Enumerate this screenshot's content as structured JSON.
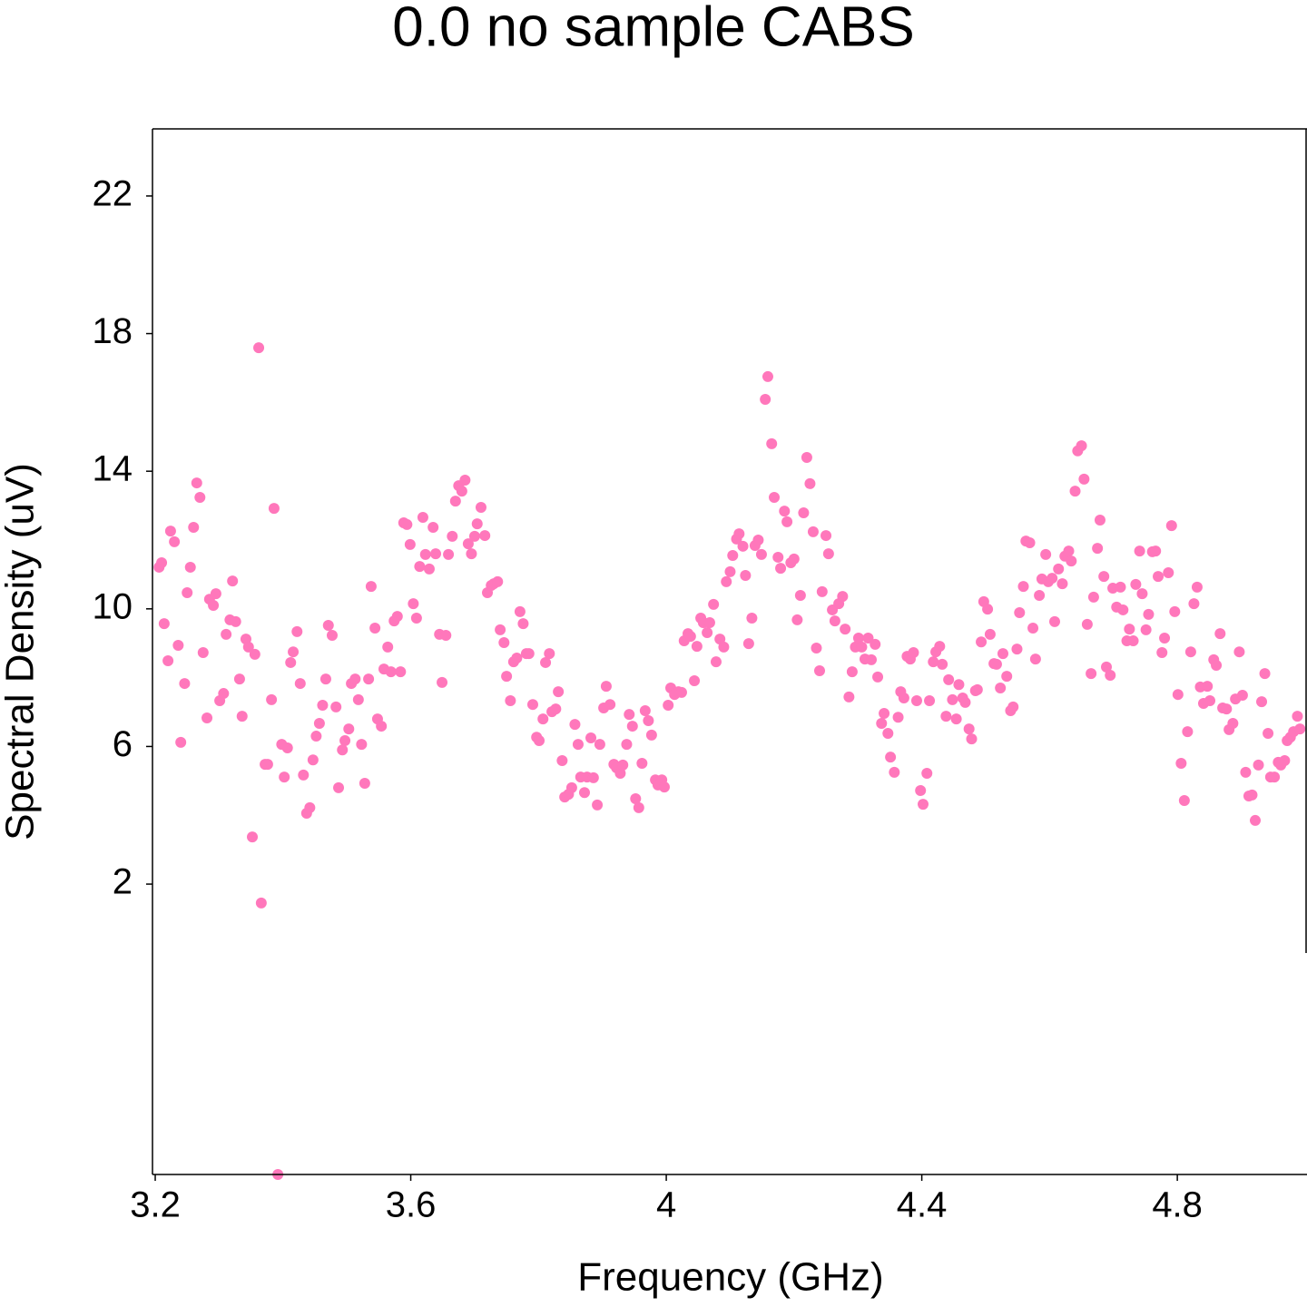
{
  "chart_data": {
    "type": "scatter",
    "title": "0.0 no sample CABS",
    "x_label": "Frequency (GHz)",
    "y_label": "Spectral Density (uV)",
    "color": "#ff77bb",
    "xlim": [
      3.1957,
      5.003
    ],
    "ylim": [
      -6.44,
      23.95
    ],
    "xticks": [
      3.2,
      3.6,
      4,
      4.4,
      4.8
    ],
    "yticks": [
      2,
      6,
      10,
      14,
      18,
      22
    ],
    "x": [
      3.206,
      3.21,
      3.214,
      3.22,
      3.224,
      3.23,
      3.236,
      3.24,
      3.246,
      3.25,
      3.255,
      3.26,
      3.265,
      3.27,
      3.275,
      3.281,
      3.285,
      3.291,
      3.295,
      3.301,
      3.307,
      3.311,
      3.317,
      3.321,
      3.326,
      3.332,
      3.336,
      3.342,
      3.346,
      3.352,
      3.356,
      3.362,
      3.366,
      3.372,
      3.376,
      3.382,
      3.386,
      3.392,
      3.398,
      3.402,
      3.407,
      3.412,
      3.416,
      3.422,
      3.427,
      3.432,
      3.437,
      3.442,
      3.447,
      3.452,
      3.457,
      3.462,
      3.467,
      3.471,
      3.477,
      3.483,
      3.487,
      3.493,
      3.497,
      3.503,
      3.507,
      3.513,
      3.518,
      3.523,
      3.528,
      3.534,
      3.538,
      3.544,
      3.548,
      3.554,
      3.558,
      3.564,
      3.569,
      3.574,
      3.579,
      3.584,
      3.589,
      3.594,
      3.599,
      3.604,
      3.609,
      3.614,
      3.619,
      3.623,
      3.629,
      3.635,
      3.639,
      3.645,
      3.649,
      3.655,
      3.659,
      3.665,
      3.67,
      3.675,
      3.68,
      3.685,
      3.69,
      3.695,
      3.7,
      3.704,
      3.71,
      3.716,
      3.72,
      3.726,
      3.73,
      3.736,
      3.74,
      3.746,
      3.75,
      3.756,
      3.761,
      3.766,
      3.771,
      3.776,
      3.781,
      3.785,
      3.791,
      3.797,
      3.801,
      3.807,
      3.811,
      3.817,
      3.821,
      3.827,
      3.831,
      3.837,
      3.841,
      3.847,
      3.852,
      3.857,
      3.862,
      3.866,
      3.872,
      3.876,
      3.882,
      3.886,
      3.892,
      3.896,
      3.902,
      3.906,
      3.912,
      3.918,
      3.922,
      3.928,
      3.932,
      3.938,
      3.942,
      3.947,
      3.952,
      3.957,
      3.962,
      3.967,
      3.972,
      3.977,
      3.983,
      3.987,
      3.993,
      3.997,
      4.003,
      4.007,
      4.013,
      4.019,
      4.024,
      4.028,
      4.034,
      4.038,
      4.044,
      4.048,
      4.054,
      4.058,
      4.064,
      4.068,
      4.074,
      4.078,
      4.084,
      4.09,
      4.094,
      4.1,
      4.104,
      4.11,
      4.114,
      4.12,
      4.124,
      4.129,
      4.134,
      4.139,
      4.144,
      4.149,
      4.155,
      4.159,
      4.165,
      4.169,
      4.175,
      4.179,
      4.185,
      4.189,
      4.195,
      4.2,
      4.205,
      4.21,
      4.215,
      4.22,
      4.225,
      4.23,
      4.235,
      4.24,
      4.244,
      4.25,
      4.254,
      4.26,
      4.264,
      4.27,
      4.276,
      4.28,
      4.286,
      4.291,
      4.296,
      4.301,
      4.306,
      4.311,
      4.316,
      4.321,
      4.327,
      4.331,
      4.337,
      4.341,
      4.347,
      4.351,
      4.357,
      4.363,
      4.367,
      4.372,
      4.377,
      4.382,
      4.387,
      4.392,
      4.398,
      4.402,
      4.408,
      4.412,
      4.418,
      4.422,
      4.428,
      4.432,
      4.438,
      4.442,
      4.448,
      4.454,
      4.458,
      4.464,
      4.468,
      4.474,
      4.478,
      4.484,
      4.487,
      4.493,
      4.497,
      4.503,
      4.507,
      4.513,
      4.517,
      4.523,
      4.527,
      4.533,
      4.539,
      4.543,
      4.549,
      4.553,
      4.559,
      4.563,
      4.569,
      4.574,
      4.578,
      4.584,
      4.588,
      4.594,
      4.598,
      4.604,
      4.608,
      4.614,
      4.62,
      4.624,
      4.63,
      4.634,
      4.64,
      4.644,
      4.65,
      4.654,
      4.659,
      4.665,
      4.669,
      4.675,
      4.679,
      4.685,
      4.689,
      4.695,
      4.699,
      4.705,
      4.711,
      4.715,
      4.721,
      4.725,
      4.731,
      4.735,
      4.741,
      4.745,
      4.751,
      4.755,
      4.761,
      4.766,
      4.77,
      4.776,
      4.78,
      4.786,
      4.791,
      4.796,
      4.801,
      4.806,
      4.811,
      4.816,
      4.821,
      4.826,
      4.831,
      4.836,
      4.841,
      4.847,
      4.851,
      4.857,
      4.861,
      4.867,
      4.871,
      4.877,
      4.881,
      4.887,
      4.891,
      4.897,
      4.902,
      4.907,
      4.912,
      4.917,
      4.922,
      4.927,
      4.932,
      4.937,
      4.942,
      4.946,
      4.952,
      4.958,
      4.962,
      4.968,
      4.972,
      4.977,
      4.982,
      4.988,
      4.992
    ],
    "values": [
      11.21,
      11.34,
      9.57,
      8.49,
      12.26,
      11.95,
      8.94,
      6.12,
      7.83,
      10.47,
      11.21,
      12.37,
      13.66,
      13.24,
      8.73,
      6.83,
      10.28,
      10.1,
      10.44,
      7.33,
      7.54,
      9.26,
      9.68,
      10.81,
      9.63,
      7.96,
      6.88,
      9.12,
      8.89,
      3.37,
      8.68,
      17.59,
      1.45,
      5.48,
      5.48,
      7.36,
      12.92,
      -6.44,
      6.06,
      5.11,
      5.96,
      8.44,
      8.75,
      9.34,
      7.83,
      5.17,
      4.06,
      4.22,
      5.61,
      6.3,
      6.67,
      7.2,
      7.96,
      9.52,
      9.23,
      7.15,
      4.8,
      5.9,
      6.17,
      6.51,
      7.83,
      7.96,
      7.36,
      6.06,
      4.93,
      7.96,
      10.65,
      9.44,
      6.8,
      6.59,
      8.25,
      8.89,
      8.17,
      9.65,
      9.78,
      8.17,
      12.5,
      12.45,
      11.87,
      10.15,
      9.73,
      11.23,
      12.66,
      11.58,
      11.16,
      12.37,
      11.6,
      9.26,
      7.86,
      9.23,
      11.58,
      12.11,
      13.13,
      13.58,
      13.42,
      13.74,
      11.89,
      11.6,
      12.11,
      12.47,
      12.95,
      12.13,
      10.47,
      10.68,
      10.73,
      10.79,
      9.39,
      9.02,
      8.04,
      7.33,
      8.46,
      8.57,
      9.92,
      9.57,
      8.7,
      8.7,
      7.22,
      6.27,
      6.17,
      6.8,
      8.44,
      8.7,
      7.01,
      7.09,
      7.59,
      5.59,
      4.53,
      4.61,
      4.8,
      6.64,
      6.06,
      5.11,
      4.66,
      5.11,
      6.25,
      5.09,
      4.3,
      6.06,
      7.12,
      7.75,
      7.22,
      5.48,
      5.38,
      5.22,
      5.46,
      6.06,
      6.93,
      6.59,
      4.48,
      4.22,
      5.51,
      7.04,
      6.75,
      6.33,
      5.03,
      4.88,
      5.03,
      4.82,
      7.2,
      7.7,
      7.51,
      7.59,
      7.57,
      9.07,
      9.28,
      9.2,
      7.91,
      8.91,
      9.73,
      9.6,
      9.31,
      9.6,
      10.13,
      8.46,
      9.12,
      8.89,
      10.79,
      11.08,
      11.55,
      12.03,
      12.18,
      11.82,
      10.97,
      8.99,
      9.73,
      11.84,
      12.0,
      11.58,
      16.09,
      16.75,
      14.8,
      13.24,
      11.5,
      11.18,
      12.84,
      12.53,
      11.34,
      11.45,
      9.68,
      10.39,
      12.79,
      14.4,
      13.64,
      12.24,
      8.86,
      8.2,
      10.5,
      12.13,
      11.6,
      9.97,
      9.65,
      10.15,
      10.36,
      9.41,
      7.44,
      8.17,
      8.89,
      9.15,
      8.89,
      8.54,
      9.15,
      8.52,
      8.97,
      8.02,
      6.67,
      6.96,
      6.38,
      5.69,
      5.25,
      6.85,
      7.59,
      7.41,
      8.62,
      8.54,
      8.73,
      7.33,
      4.72,
      4.32,
      5.22,
      7.33,
      8.46,
      8.75,
      8.91,
      8.39,
      6.88,
      7.94,
      7.36,
      6.8,
      7.8,
      7.41,
      7.28,
      6.51,
      6.22,
      7.62,
      7.65,
      9.04,
      10.21,
      9.99,
      9.26,
      8.41,
      8.39,
      7.7,
      8.7,
      8.04,
      7.04,
      7.15,
      8.83,
      9.89,
      10.65,
      11.97,
      11.92,
      9.44,
      8.54,
      10.39,
      10.87,
      11.58,
      10.79,
      10.89,
      9.63,
      11.16,
      10.73,
      11.53,
      11.68,
      11.39,
      13.42,
      14.59,
      14.74,
      13.77,
      9.55,
      8.12,
      10.34,
      11.76,
      12.58,
      10.94,
      8.31,
      8.07,
      10.6,
      10.05,
      10.63,
      9.97,
      9.07,
      9.41,
      9.07,
      10.71,
      11.68,
      10.44,
      9.39,
      9.84,
      11.66,
      11.68,
      10.94,
      8.73,
      9.15,
      11.05,
      12.42,
      9.92,
      7.51,
      5.51,
      4.43,
      6.43,
      8.75,
      10.15,
      10.63,
      7.73,
      7.25,
      7.75,
      7.33,
      8.52,
      8.36,
      9.28,
      7.12,
      7.09,
      6.49,
      6.67,
      7.38,
      8.75,
      7.49,
      5.25,
      4.56,
      4.59,
      3.85,
      5.46,
      7.3,
      8.12,
      6.38,
      5.11,
      5.11,
      5.54,
      5.46,
      5.59,
      6.17,
      6.27,
      6.43,
      6.88,
      6.51
    ]
  }
}
